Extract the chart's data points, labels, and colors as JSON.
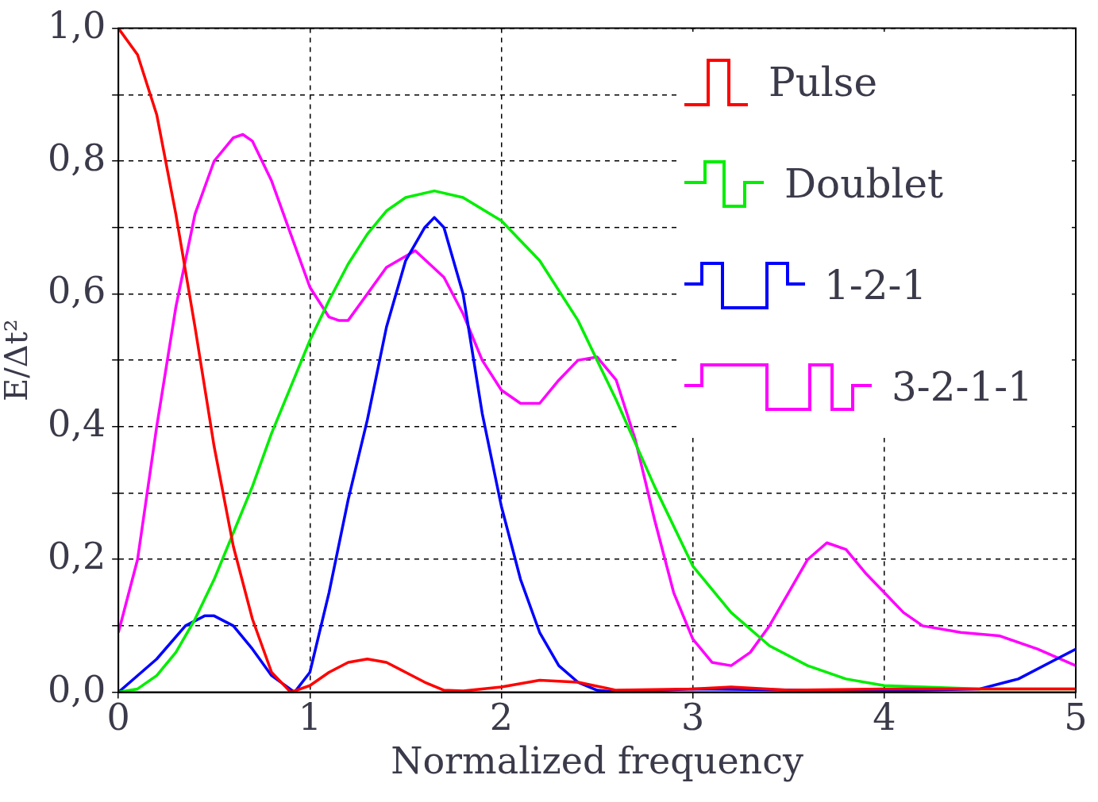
{
  "chart_data": {
    "type": "line",
    "xlabel": "Normalized frequency",
    "ylabel": "E/Δt²",
    "xlim": [
      0,
      5
    ],
    "xticks": [
      0,
      1,
      2,
      3,
      4,
      5
    ],
    "ylim": [
      0,
      1
    ],
    "yticks": [
      {
        "value": 0,
        "label": "0,0"
      },
      {
        "value": 0.1,
        "label": null
      },
      {
        "value": 0.2,
        "label": "0,2"
      },
      {
        "value": 0.3,
        "label": null
      },
      {
        "value": 0.4,
        "label": "0,4"
      },
      {
        "value": 0.5,
        "label": null
      },
      {
        "value": 0.6,
        "label": "0,6"
      },
      {
        "value": 0.7,
        "label": null
      },
      {
        "value": 0.8,
        "label": "0,8"
      },
      {
        "value": 0.9,
        "label": null
      },
      {
        "value": 1,
        "label": "1,0"
      }
    ],
    "grid": true,
    "legend": "top right",
    "marker": "none",
    "line_style": "solid",
    "series": [
      {
        "name": "Pulse",
        "color": "#ff0000",
        "x": [
          0,
          0.1,
          0.2,
          0.3,
          0.4,
          0.5,
          0.6,
          0.7,
          0.8,
          0.9,
          1.0,
          1.1,
          1.2,
          1.3,
          1.4,
          1.5,
          1.6,
          1.7,
          1.8,
          2.0,
          2.2,
          2.4,
          2.6,
          3.0,
          3.2,
          3.5,
          4.0,
          5.0
        ],
        "values": [
          1.0,
          0.96,
          0.87,
          0.72,
          0.55,
          0.37,
          0.22,
          0.11,
          0.03,
          0.0,
          0.01,
          0.03,
          0.045,
          0.05,
          0.045,
          0.03,
          0.015,
          0.003,
          0.002,
          0.008,
          0.018,
          0.015,
          0.003,
          0.005,
          0.008,
          0.003,
          0.005,
          0.005
        ]
      },
      {
        "name": "Doublet",
        "color": "#00ee00",
        "x": [
          0,
          0.1,
          0.2,
          0.3,
          0.4,
          0.5,
          0.6,
          0.7,
          0.8,
          0.9,
          1.0,
          1.1,
          1.2,
          1.3,
          1.4,
          1.5,
          1.65,
          1.8,
          2.0,
          2.2,
          2.4,
          2.6,
          2.8,
          3.0,
          3.2,
          3.4,
          3.6,
          3.8,
          4.0,
          4.5,
          5.0
        ],
        "values": [
          0,
          0.005,
          0.025,
          0.06,
          0.11,
          0.17,
          0.24,
          0.31,
          0.39,
          0.46,
          0.53,
          0.59,
          0.645,
          0.69,
          0.725,
          0.745,
          0.755,
          0.745,
          0.71,
          0.65,
          0.56,
          0.44,
          0.31,
          0.19,
          0.12,
          0.07,
          0.04,
          0.02,
          0.01,
          0.005,
          0.005
        ]
      },
      {
        "name": "1-2-1",
        "color": "#0000ff",
        "x": [
          0,
          0.2,
          0.35,
          0.45,
          0.5,
          0.6,
          0.7,
          0.8,
          0.92,
          1.0,
          1.1,
          1.2,
          1.3,
          1.4,
          1.5,
          1.6,
          1.65,
          1.7,
          1.8,
          1.9,
          2.0,
          2.1,
          2.2,
          2.3,
          2.4,
          2.5,
          2.6,
          3.0,
          4.0,
          4.5,
          4.7,
          4.9,
          5.0
        ],
        "values": [
          0,
          0.05,
          0.1,
          0.115,
          0.115,
          0.1,
          0.065,
          0.025,
          0.0,
          0.03,
          0.15,
          0.29,
          0.41,
          0.55,
          0.65,
          0.7,
          0.715,
          0.7,
          0.6,
          0.42,
          0.28,
          0.17,
          0.09,
          0.04,
          0.015,
          0.003,
          0.0,
          0.005,
          0.002,
          0.005,
          0.02,
          0.05,
          0.065
        ]
      },
      {
        "name": "3-2-1-1",
        "color": "#ff00ff",
        "x": [
          0,
          0.1,
          0.2,
          0.3,
          0.4,
          0.5,
          0.6,
          0.65,
          0.7,
          0.8,
          0.9,
          1.0,
          1.1,
          1.15,
          1.2,
          1.3,
          1.4,
          1.55,
          1.7,
          1.8,
          1.9,
          2.0,
          2.1,
          2.2,
          2.3,
          2.4,
          2.5,
          2.6,
          2.7,
          2.8,
          2.9,
          3.0,
          3.1,
          3.2,
          3.3,
          3.4,
          3.5,
          3.6,
          3.7,
          3.8,
          3.9,
          4.0,
          4.1,
          4.2,
          4.4,
          4.6,
          4.8,
          5.0
        ],
        "values": [
          0.09,
          0.2,
          0.4,
          0.58,
          0.72,
          0.8,
          0.835,
          0.84,
          0.83,
          0.77,
          0.69,
          0.61,
          0.565,
          0.56,
          0.56,
          0.6,
          0.64,
          0.665,
          0.625,
          0.57,
          0.5,
          0.455,
          0.435,
          0.435,
          0.47,
          0.5,
          0.505,
          0.47,
          0.38,
          0.26,
          0.15,
          0.08,
          0.045,
          0.04,
          0.06,
          0.1,
          0.15,
          0.2,
          0.225,
          0.215,
          0.18,
          0.15,
          0.12,
          0.1,
          0.09,
          0.085,
          0.065,
          0.04
        ]
      }
    ]
  }
}
